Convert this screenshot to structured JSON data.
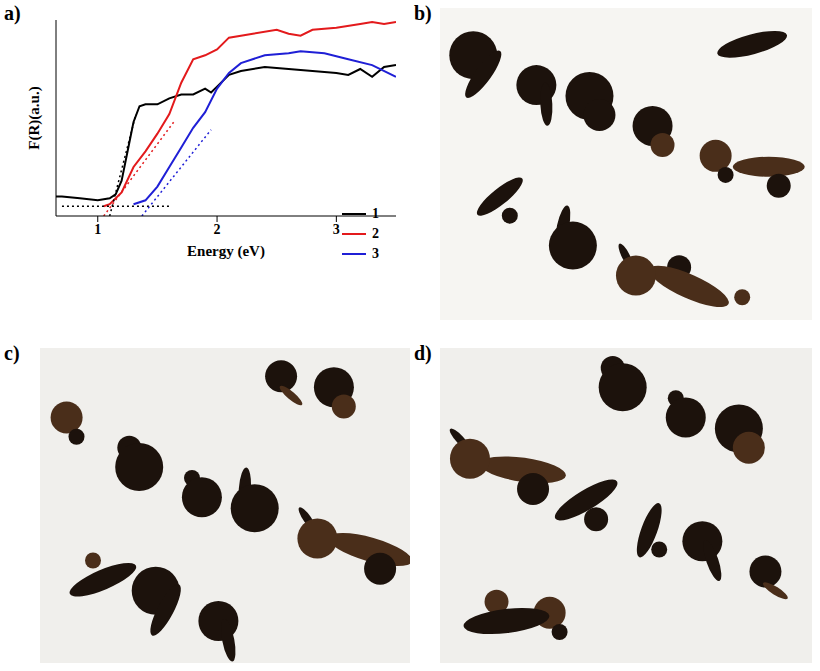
{
  "chart_data": {
    "type": "line",
    "label": "a)",
    "x_label": "Energy (eV)",
    "y_label": "F(R)(a.u.)",
    "xlim": [
      0.65,
      3.5
    ],
    "xticks": [
      1,
      2,
      3
    ],
    "ylim": [
      0,
      1
    ],
    "yticks": [],
    "tick_labels": "x",
    "legend": "lower right",
    "series": [
      {
        "name": "1",
        "color": "#000000",
        "line_style": "solid",
        "x": [
          0.65,
          0.7,
          0.85,
          1.0,
          1.1,
          1.15,
          1.2,
          1.25,
          1.3,
          1.35,
          1.4,
          1.5,
          1.6,
          1.7,
          1.8,
          1.9,
          1.95,
          2.0,
          2.1,
          2.2,
          2.4,
          2.6,
          2.8,
          3.0,
          3.1,
          3.2,
          3.3,
          3.4,
          3.5
        ],
        "values": [
          0.1,
          0.1,
          0.09,
          0.08,
          0.09,
          0.11,
          0.18,
          0.33,
          0.48,
          0.56,
          0.57,
          0.57,
          0.6,
          0.62,
          0.62,
          0.65,
          0.63,
          0.66,
          0.72,
          0.74,
          0.76,
          0.75,
          0.74,
          0.73,
          0.72,
          0.75,
          0.71,
          0.76,
          0.77
        ]
      },
      {
        "name": "2",
        "color": "#e31a1c",
        "line_style": "solid",
        "x": [
          1.05,
          1.1,
          1.2,
          1.3,
          1.4,
          1.5,
          1.6,
          1.7,
          1.8,
          1.9,
          2.0,
          2.1,
          2.2,
          2.3,
          2.5,
          2.6,
          2.7,
          2.8,
          3.0,
          3.2,
          3.3,
          3.4,
          3.5
        ],
        "values": [
          0.05,
          0.06,
          0.12,
          0.25,
          0.33,
          0.42,
          0.52,
          0.68,
          0.8,
          0.82,
          0.85,
          0.91,
          0.92,
          0.93,
          0.95,
          0.93,
          0.92,
          0.95,
          0.96,
          0.98,
          0.99,
          0.98,
          0.99
        ]
      },
      {
        "name": "3",
        "color": "#1f1fd6",
        "line_style": "solid",
        "x": [
          1.3,
          1.4,
          1.5,
          1.6,
          1.7,
          1.8,
          1.9,
          2.0,
          2.1,
          2.2,
          2.4,
          2.6,
          2.7,
          2.9,
          3.1,
          3.3,
          3.5
        ],
        "values": [
          0.06,
          0.08,
          0.15,
          0.25,
          0.35,
          0.45,
          0.53,
          0.65,
          0.73,
          0.78,
          0.82,
          0.83,
          0.84,
          0.83,
          0.8,
          0.77,
          0.71
        ]
      },
      {
        "color": "#000000",
        "line_style": "dotted",
        "x": [
          0.7,
          1.6
        ],
        "values": [
          0.05,
          0.05
        ]
      },
      {
        "color": "#000000",
        "line_style": "dotted",
        "x": [
          1.1,
          1.32
        ],
        "values": [
          0.0,
          0.52
        ]
      },
      {
        "color": "#e31a1c",
        "line_style": "dotted",
        "x": [
          1.05,
          1.65
        ],
        "values": [
          0.0,
          0.49
        ]
      },
      {
        "color": "#1f1fd6",
        "line_style": "dotted",
        "x": [
          1.37,
          1.95
        ],
        "values": [
          0.0,
          0.44
        ]
      }
    ]
  },
  "photos": [
    {
      "label": "b)"
    },
    {
      "label": "c)"
    },
    {
      "label": "d)"
    }
  ]
}
